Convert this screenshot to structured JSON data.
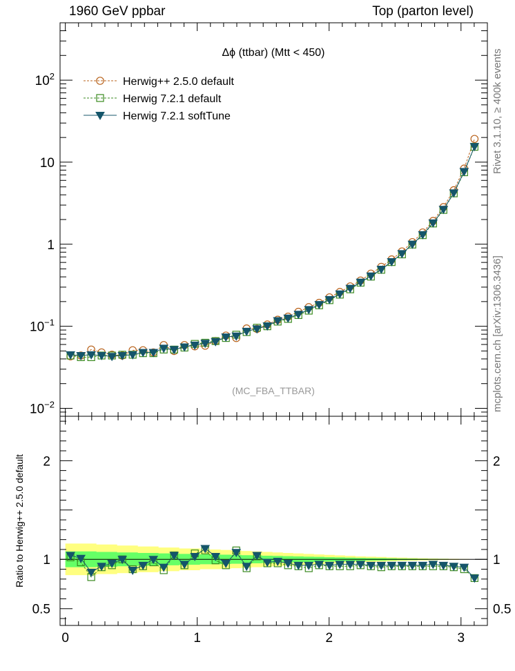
{
  "header": {
    "energy_label": "1960 GeV ppbar",
    "process_label": "Top (parton level)"
  },
  "side_labels": {
    "rivet": "Rivet 3.1.10, ≥ 400k events",
    "mcplots": "mcplots.cern.ch [arXiv:1306.3436]"
  },
  "chart_data": [
    {
      "type": "line",
      "title": "Δϕ (ttbar) (Mtt < 450)",
      "watermark": "(MC_FBA_TTBAR)",
      "xlabel": "",
      "ylabel": "",
      "yscale": "log",
      "xlim": [
        -0.04,
        3.2
      ],
      "ylim": [
        0.008,
        500
      ],
      "y_ticks": [
        {
          "value": 0.01,
          "label": "10",
          "sup": "−2"
        },
        {
          "value": 0.1,
          "label": "10",
          "sup": "−1"
        },
        {
          "value": 1,
          "label": "1",
          "sup": ""
        },
        {
          "value": 10,
          "label": "10",
          "sup": ""
        },
        {
          "value": 100,
          "label": "10",
          "sup": "2"
        }
      ],
      "legend_position": "top-left",
      "x": [
        0.0393,
        0.1178,
        0.1963,
        0.2749,
        0.3534,
        0.432,
        0.5105,
        0.589,
        0.6676,
        0.7461,
        0.8247,
        0.9032,
        0.9817,
        1.0603,
        1.1388,
        1.2174,
        1.2959,
        1.3744,
        1.453,
        1.5315,
        1.6101,
        1.6886,
        1.7671,
        1.8457,
        1.9242,
        2.0028,
        2.0813,
        2.1598,
        2.2384,
        2.3169,
        2.3955,
        2.474,
        2.5525,
        2.6311,
        2.7096,
        2.7882,
        2.8667,
        2.9452,
        3.0238,
        3.1023
      ],
      "series": [
        {
          "name": "Herwig++ 2.5.0 default",
          "color": "#b8621b",
          "marker": "circle",
          "line": "dashed",
          "values": [
            0.043,
            0.044,
            0.052,
            0.048,
            0.045,
            0.044,
            0.051,
            0.051,
            0.048,
            0.059,
            0.05,
            0.059,
            0.057,
            0.058,
            0.066,
            0.077,
            0.072,
            0.094,
            0.093,
            0.105,
            0.12,
            0.131,
            0.15,
            0.171,
            0.193,
            0.225,
            0.262,
            0.306,
            0.361,
            0.438,
            0.53,
            0.652,
            0.816,
            1.06,
            1.39,
            1.92,
            2.83,
            4.55,
            8.36,
            19.2
          ]
        },
        {
          "name": "Herwig 7.2.1 default",
          "color": "#3a8a1f",
          "marker": "square-open",
          "line": "dashed",
          "values": [
            0.044,
            0.042,
            0.042,
            0.044,
            0.044,
            0.045,
            0.045,
            0.047,
            0.047,
            0.052,
            0.052,
            0.055,
            0.061,
            0.063,
            0.066,
            0.072,
            0.079,
            0.085,
            0.096,
            0.1,
            0.114,
            0.123,
            0.137,
            0.155,
            0.18,
            0.208,
            0.243,
            0.282,
            0.34,
            0.403,
            0.488,
            0.606,
            0.752,
            0.99,
            1.29,
            1.79,
            2.62,
            4.17,
            7.54,
            15.4
          ]
        },
        {
          "name": "Herwig 7.2.1 softTune",
          "color": "#15556a",
          "marker": "triangle-down",
          "line": "solid",
          "values": [
            0.045,
            0.044,
            0.045,
            0.044,
            0.043,
            0.044,
            0.045,
            0.048,
            0.048,
            0.054,
            0.052,
            0.056,
            0.059,
            0.062,
            0.065,
            0.074,
            0.076,
            0.087,
            0.093,
            0.101,
            0.117,
            0.126,
            0.14,
            0.16,
            0.184,
            0.212,
            0.248,
            0.29,
            0.345,
            0.41,
            0.496,
            0.613,
            0.768,
            1.0,
            1.31,
            1.82,
            2.66,
            4.23,
            7.7,
            15.5
          ]
        }
      ]
    },
    {
      "type": "line",
      "title": "",
      "xlabel": "",
      "ylabel": "Ratio to Herwig++ 2.5.0 default",
      "xlim": [
        -0.04,
        3.2
      ],
      "ylim": [
        0.33,
        2.45
      ],
      "x_ticks": [
        0,
        1,
        2,
        3
      ],
      "y_ticks": [
        0.5,
        1,
        2
      ],
      "reference_band": {
        "outer_color": "#ffff80",
        "inner_color": "#66ff66",
        "outer_halfwidth": [
          0.16,
          0.16,
          0.16,
          0.15,
          0.15,
          0.14,
          0.14,
          0.13,
          0.13,
          0.12,
          0.12,
          0.11,
          0.11,
          0.1,
          0.1,
          0.095,
          0.09,
          0.085,
          0.08,
          0.075,
          0.07,
          0.065,
          0.06,
          0.055,
          0.05,
          0.045,
          0.04,
          0.035,
          0.03,
          0.027,
          0.024,
          0.02,
          0.017,
          0.014,
          0.011,
          0.009,
          0.007,
          0.005,
          0.003,
          0.002
        ],
        "inner_halfwidth": [
          0.08,
          0.08,
          0.08,
          0.075,
          0.075,
          0.07,
          0.07,
          0.065,
          0.065,
          0.06,
          0.06,
          0.055,
          0.055,
          0.05,
          0.05,
          0.047,
          0.045,
          0.042,
          0.04,
          0.037,
          0.035,
          0.032,
          0.03,
          0.027,
          0.025,
          0.022,
          0.02,
          0.017,
          0.015,
          0.013,
          0.012,
          0.01,
          0.008,
          0.007,
          0.005,
          0.004,
          0.003,
          0.002,
          0.0015,
          0.001
        ]
      },
      "series": [
        {
          "name": "Herwig 7.2.1 default",
          "color": "#3a8a1f",
          "marker": "square-open",
          "line": "dashed",
          "values": [
            1.02,
            0.97,
            0.82,
            0.92,
            0.94,
            1.0,
            0.9,
            0.93,
            0.97,
            0.89,
            1.04,
            0.94,
            1.06,
            1.09,
            0.99,
            0.94,
            1.09,
            0.91,
            1.03,
            0.96,
            0.96,
            0.94,
            0.93,
            0.91,
            0.94,
            0.93,
            0.93,
            0.93,
            0.94,
            0.93,
            0.92,
            0.93,
            0.93,
            0.93,
            0.93,
            0.93,
            0.93,
            0.92,
            0.9,
            0.81
          ]
        },
        {
          "name": "Herwig 7.2.1 softTune",
          "color": "#15556a",
          "marker": "triangle-down",
          "line": "solid",
          "values": [
            1.04,
            1.01,
            0.87,
            0.93,
            0.96,
            1.0,
            0.89,
            0.94,
            1.0,
            0.92,
            1.04,
            0.95,
            1.03,
            1.11,
            1.03,
            0.96,
            1.07,
            0.93,
            1.04,
            0.97,
            0.98,
            0.96,
            0.94,
            0.94,
            0.95,
            0.94,
            0.95,
            0.95,
            0.95,
            0.94,
            0.94,
            0.94,
            0.94,
            0.94,
            0.94,
            0.95,
            0.94,
            0.93,
            0.92,
            0.81
          ]
        }
      ]
    }
  ]
}
